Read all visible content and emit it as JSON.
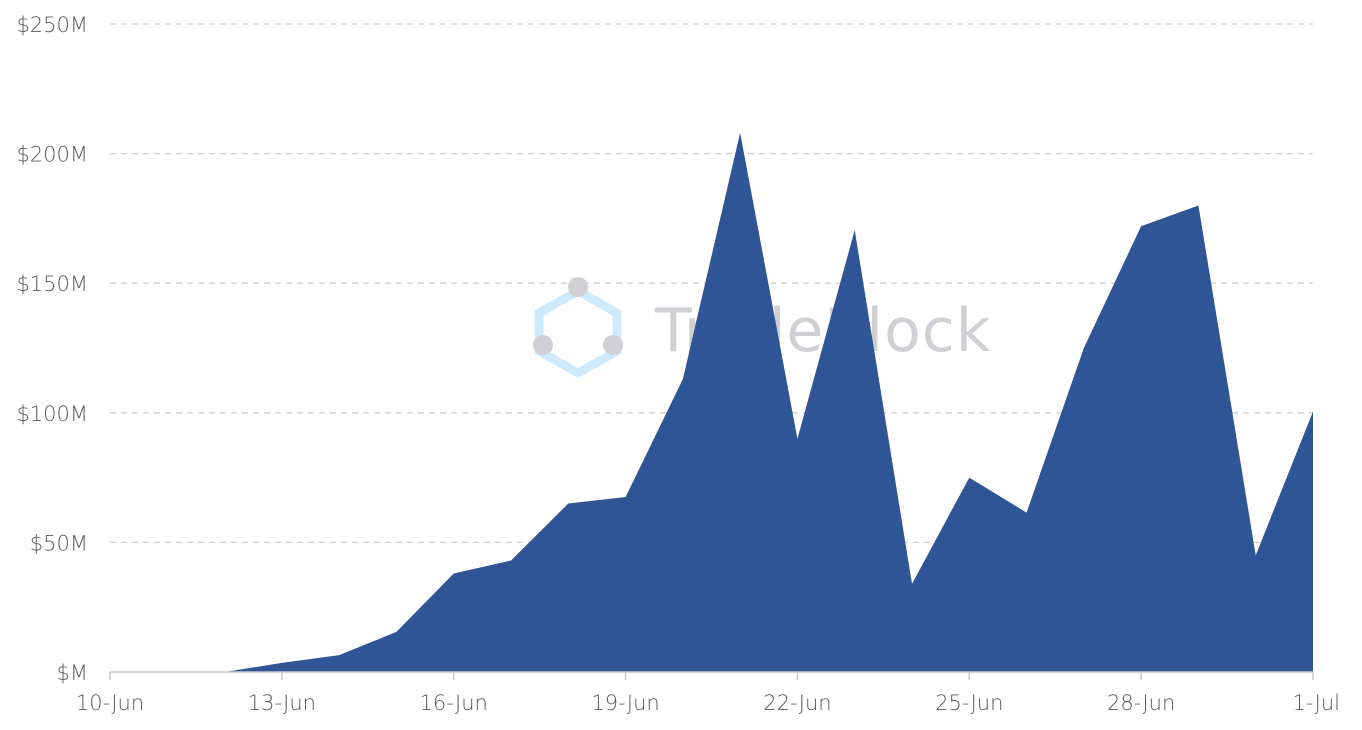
{
  "watermark": {
    "text": "TradeBlock",
    "logo_color": "#cfeafd",
    "dot_color": "#d0d0d4",
    "text_color": "#d0d0d4",
    "logo_icon": "hexagon-logo-icon"
  },
  "colors": {
    "area_fill": "#2f5596",
    "grid": "#d0d0d0",
    "axis": "#c9c9c9",
    "tick_text": "#595959"
  },
  "chart_data": {
    "type": "area",
    "title": "",
    "xlabel": "",
    "ylabel": "",
    "x": [
      "10-Jun",
      "11-Jun",
      "12-Jun",
      "13-Jun",
      "14-Jun",
      "15-Jun",
      "16-Jun",
      "17-Jun",
      "18-Jun",
      "19-Jun",
      "20-Jun",
      "21-Jun",
      "22-Jun",
      "23-Jun",
      "24-Jun",
      "25-Jun",
      "26-Jun",
      "27-Jun",
      "28-Jun",
      "29-Jun",
      "30-Jun",
      "1-Jul"
    ],
    "series": [
      {
        "values": [
          0,
          0,
          0,
          3.5,
          6.5,
          15.5,
          38,
          43,
          65,
          67.5,
          113,
          208,
          90,
          170.5,
          34,
          75,
          61.5,
          125,
          172,
          180,
          45,
          100.5
        ]
      }
    ],
    "ylim": [
      0,
      250
    ],
    "y_ticks": [
      0,
      50,
      100,
      150,
      200,
      250
    ],
    "y_tick_labels": [
      "$M",
      "$50M",
      "$100M",
      "$150M",
      "$200M",
      "$250M"
    ],
    "x_tick_labels": [
      "10-Jun",
      "13-Jun",
      "16-Jun",
      "19-Jun",
      "22-Jun",
      "25-Jun",
      "28-Jun",
      "1-Jul"
    ],
    "x_tick_indices": [
      0,
      3,
      6,
      9,
      12,
      15,
      18,
      21
    ],
    "grid": true,
    "grid_style": "dashed-horizontal",
    "legend": "none"
  }
}
